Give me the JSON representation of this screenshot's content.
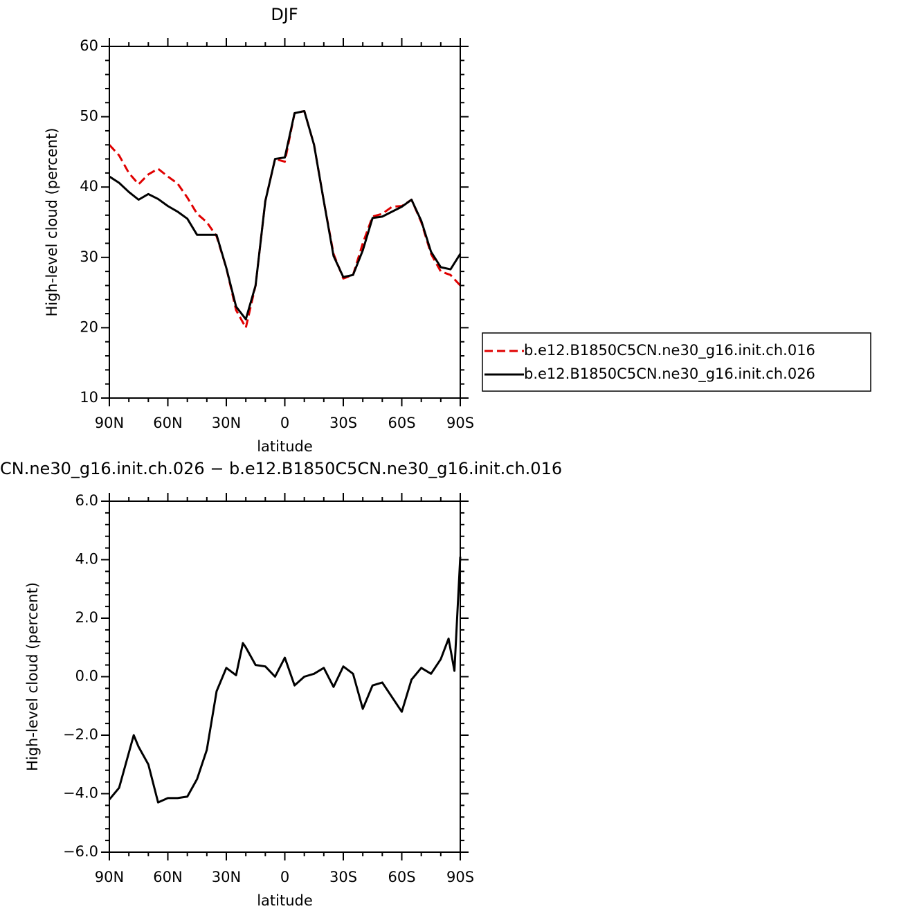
{
  "chart_data": [
    {
      "type": "line",
      "title": "DJF",
      "xlabel": "latitude",
      "ylabel": "High-level cloud (percent)",
      "x": [
        90,
        85,
        80,
        75,
        70,
        65,
        60,
        55,
        50,
        45,
        40,
        35,
        30,
        25,
        20,
        15,
        10,
        5,
        0,
        -5,
        -10,
        -15,
        -20,
        -25,
        -30,
        -35,
        -40,
        -45,
        -50,
        -55,
        -60,
        -65,
        -70,
        -75,
        -80,
        -85,
        -90
      ],
      "xlim": [
        90,
        -90
      ],
      "xticks": [
        {
          "value": 90,
          "label": "90N"
        },
        {
          "value": 60,
          "label": "60N"
        },
        {
          "value": 30,
          "label": "30N"
        },
        0,
        {
          "value": -30,
          "label": "30S"
        },
        {
          "value": -60,
          "label": "60S"
        },
        {
          "value": -90,
          "label": "90S"
        }
      ],
      "ylim": [
        10,
        60
      ],
      "yticks": [
        10,
        20,
        30,
        40,
        50,
        60
      ],
      "legend": "right",
      "series": [
        {
          "name": "b.e12.B1850C5CN.ne30_g16.init.ch.016",
          "color": "#e00000",
          "dashed": true,
          "values": [
            46,
            44.5,
            42,
            40.4,
            41.8,
            42.6,
            41.5,
            40.5,
            38.5,
            36.2,
            35,
            33,
            28.5,
            22.5,
            20,
            26,
            38,
            44,
            43.6,
            50.5,
            50.8,
            46,
            38,
            30.5,
            27,
            27.5,
            32,
            35.8,
            36.2,
            37.2,
            37.3,
            38.2,
            35,
            30.5,
            28,
            27.5,
            26
          ]
        },
        {
          "name": "b.e12.B1850C5CN.ne30_g16.init.ch.026",
          "color": "#000000",
          "dashed": false,
          "values": [
            41.5,
            40.6,
            39.3,
            38.2,
            39,
            38.3,
            37.3,
            36.5,
            35.5,
            33.2,
            33.2,
            33.2,
            28.5,
            23,
            21.2,
            26,
            38,
            44,
            44.2,
            50.5,
            50.8,
            46,
            38,
            30.2,
            27.2,
            27.5,
            31,
            35.6,
            35.8,
            36.5,
            37.2,
            38.2,
            35.2,
            30.8,
            28.6,
            28.3,
            30.5
          ]
        }
      ]
    },
    {
      "type": "line",
      "title": "CN.ne30_g16.init.ch.026 − b.e12.B1850C5CN.ne30_g16.init.ch.016",
      "xlabel": "latitude",
      "ylabel": "High-level cloud (percent)",
      "x": [
        90,
        85,
        80,
        77.5,
        75,
        70,
        65,
        60,
        55,
        50,
        45,
        40,
        35,
        30,
        25,
        21.5,
        20,
        15,
        10,
        5,
        0,
        -5,
        -10,
        -15,
        -20,
        -25,
        -30,
        -35,
        -40,
        -45,
        -50,
        -55,
        -60,
        -65,
        -70,
        -75,
        -80,
        -84,
        -87,
        -90
      ],
      "xlim": [
        90,
        -90
      ],
      "xticks": [
        {
          "value": 90,
          "label": "90N"
        },
        {
          "value": 60,
          "label": "60N"
        },
        {
          "value": 30,
          "label": "30N"
        },
        0,
        {
          "value": -30,
          "label": "30S"
        },
        {
          "value": -60,
          "label": "60S"
        },
        {
          "value": -90,
          "label": "90S"
        }
      ],
      "ylim": [
        -6,
        6
      ],
      "yticks": [
        {
          "value": -6,
          "label": "−6.0"
        },
        {
          "value": -4,
          "label": "−4.0"
        },
        {
          "value": -2,
          "label": "−2.0"
        },
        {
          "value": 0,
          "label": "0.0"
        },
        {
          "value": 2,
          "label": "2.0"
        },
        {
          "value": 4,
          "label": "4.0"
        },
        {
          "value": 6,
          "label": "6.0"
        }
      ],
      "series": [
        {
          "color": "#000000",
          "dashed": false,
          "values": [
            -4.2,
            -3.8,
            -2.6,
            -2.0,
            -2.4,
            -3.0,
            -4.3,
            -4.15,
            -4.15,
            -4.1,
            -3.5,
            -2.5,
            -0.5,
            0.3,
            0.05,
            1.15,
            1.0,
            0.4,
            0.35,
            0.0,
            0.65,
            -0.3,
            0.0,
            0.1,
            0.3,
            -0.35,
            0.35,
            0.1,
            -1.1,
            -0.3,
            -0.2,
            -0.7,
            -1.2,
            -0.1,
            0.3,
            0.1,
            0.6,
            1.3,
            0.2,
            4.1
          ]
        }
      ]
    }
  ]
}
